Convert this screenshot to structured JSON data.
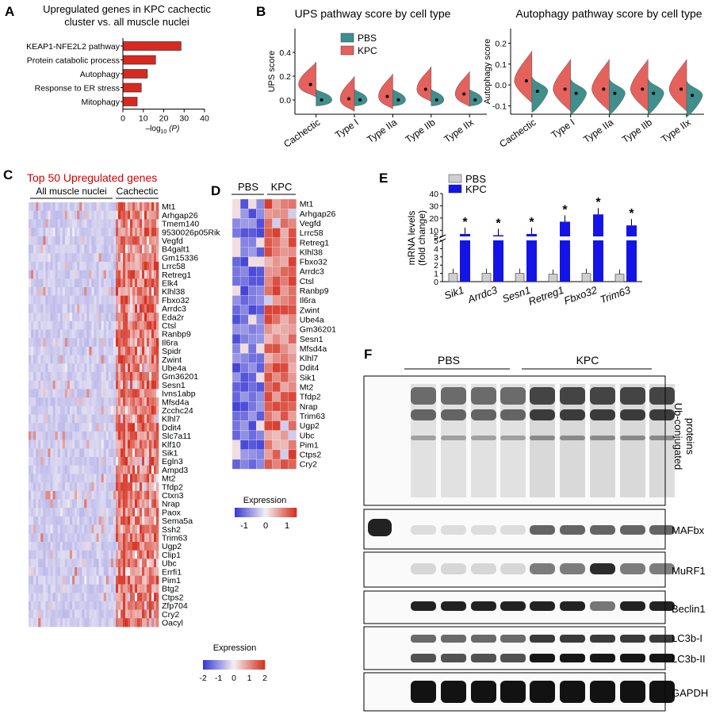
{
  "colors": {
    "pbs": "#3f8f8c",
    "kpc": "#e5615c",
    "bar_red": "#d62a20",
    "bar_blue": "#1414e6",
    "bar_gray": "#cfcfcf",
    "low": "#3b3bd6",
    "mid": "#f4f0f4",
    "high": "#d7301f",
    "title_red": "#d40000"
  },
  "panelA": {
    "letter": "A",
    "title": [
      "Upregulated genes in KPC cachectic",
      "cluster vs. all muscle nuclei"
    ],
    "xlabel_pre": "–log",
    "xlabel_sub": "10",
    "xlabel_post": " (P)",
    "chart_data": {
      "type": "bar",
      "orientation": "horizontal",
      "categories": [
        "KEAP1-NFE2L2 pathway",
        "Protein catabolic process",
        "Autophagy",
        "Response to ER stress",
        "Mitophagy"
      ],
      "values": [
        28.5,
        16,
        12,
        9,
        7
      ],
      "xlim": [
        0,
        40
      ],
      "xticks": [
        0,
        10,
        20,
        30,
        40
      ]
    }
  },
  "panelB": {
    "letter": "B",
    "categories": [
      "Cachectic",
      "Type I",
      "Type IIa",
      "Type IIb",
      "Type IIx"
    ],
    "legend": [
      "PBS",
      "KPC"
    ],
    "charts": [
      {
        "title": "UPS pathway score by cell type",
        "ylabel": "UPS score",
        "yticks": [
          "0.4",
          "0.2",
          "0.0"
        ],
        "chart_data": {
          "type": "violin",
          "ylim": [
            -0.12,
            0.6
          ],
          "kpc_median": [
            0.13,
            0.01,
            0.03,
            0.09,
            0.05
          ],
          "pbs_median": [
            0.0,
            0.0,
            0.0,
            0.0,
            0.0
          ]
        }
      },
      {
        "title": "Autophagy pathway score by cell type",
        "ylabel": "Autophagy score",
        "yticks": [
          "0.2",
          "0.1",
          "0.0",
          "-0.1"
        ],
        "chart_data": {
          "type": "violin",
          "ylim": [
            -0.14,
            0.27
          ],
          "kpc_median": [
            0.02,
            -0.02,
            -0.02,
            -0.02,
            -0.02
          ],
          "pbs_median": [
            -0.03,
            -0.04,
            -0.04,
            -0.04,
            -0.05
          ]
        }
      }
    ]
  },
  "panelC": {
    "letter": "C",
    "title": "Top 50 Upregulated genes",
    "group1": "All muscle nuclei",
    "group2": "Cachectic",
    "genes": [
      "Mt1",
      "Arhgap26",
      "Tmem140",
      "9530026p05Rik",
      "Vegfd",
      "B4galt1",
      "Gm15336",
      "Lrrc58",
      "Retreg1",
      "Elk4",
      "Klhl38",
      "Fbxo32",
      "Arrdc3",
      "Eda2r",
      "Ctsl",
      "Ranbp9",
      "Il6ra",
      "Spidr",
      "Zwint",
      "Ube4a",
      "Gm36201",
      "Sesn1",
      "Ivns1abp",
      "Mfsd4a",
      "Zcchc24",
      "Klhl7",
      "Ddit4",
      "Slc7a11",
      "Klf10",
      "Sik1",
      "Egln3",
      "Ampd3",
      "Mt2",
      "Tfdp2",
      "Ctxn3",
      "Nrap",
      "Paox",
      "Sema5a",
      "Ssh2",
      "Trim63",
      "Ugp2",
      "Clip1",
      "Ubc",
      "Errfi1",
      "Pim1",
      "Btg2",
      "Ctps2",
      "Zfp704",
      "Cry2",
      "Oacyl"
    ],
    "legend_title": "Expression",
    "legend_ticks": [
      "-2",
      "-1",
      "0",
      "1",
      "2"
    ]
  },
  "panelD": {
    "letter": "D",
    "group1": "PBS",
    "group2": "KPC",
    "genes": [
      "Mt1",
      "Arhgap26",
      "Vegfd",
      "Lrrc58",
      "Retreg1",
      "Klhl38",
      "Fbxo32",
      "Arrdc3",
      "Ctsl",
      "Ranbp9",
      "Il6ra",
      "Zwint",
      "Ube4a",
      "Gm36201",
      "Sesn1",
      "Mfsd4a",
      "Klhl7",
      "Ddit4",
      "Sik1",
      "Mt2",
      "Tfdp2",
      "Nrap",
      "Trim63",
      "Ugp2",
      "Ubc",
      "Pim1",
      "Ctps2",
      "Cry2"
    ],
    "legend_title": "Expression",
    "legend_ticks": [
      "-1",
      "0",
      "1"
    ]
  },
  "panelE": {
    "letter": "E",
    "legend": [
      "PBS",
      "KPC"
    ],
    "ylabel": [
      "mRNA levels",
      "(fold change)"
    ],
    "star": "*",
    "dagger": "‡",
    "chart_data": {
      "type": "bar",
      "broken_axis": true,
      "categories": [
        "Sik1",
        "Arrdc3",
        "Sesn1",
        "Retreg1",
        "Fbxo32",
        "Trim63"
      ],
      "series": [
        {
          "name": "PBS",
          "values": [
            1.0,
            1.0,
            1.0,
            0.9,
            1.0,
            0.9
          ]
        },
        {
          "name": "KPC",
          "values": [
            7.0,
            6.0,
            7.0,
            17.0,
            23.0,
            14.0
          ]
        }
      ],
      "upper_ticks": [
        "40",
        "30",
        "20",
        "10",
        "5"
      ],
      "lower_ticks": [
        "5",
        "4",
        "3",
        "2",
        "1",
        "0"
      ]
    }
  },
  "panelF": {
    "letter": "F",
    "group1": "PBS",
    "group2": "KPC",
    "blots": [
      "Ub-conjugated\nproteins",
      "MAFbx",
      "MuRF1",
      "Beclin1",
      "LC3b-I",
      "LC3b-II",
      "GAPDH"
    ],
    "ub_label_1": "Ub-conjugated",
    "ub_label_2": "proteins"
  }
}
